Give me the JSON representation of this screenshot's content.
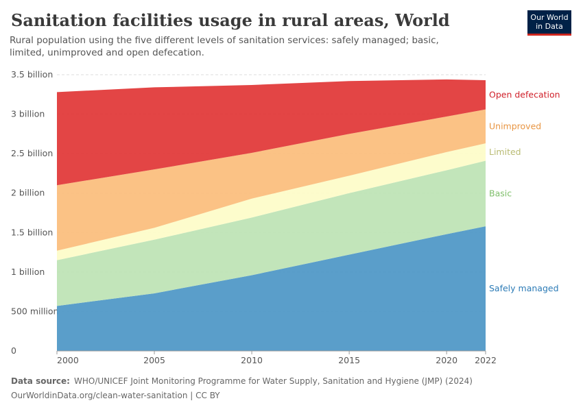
{
  "chart_data": {
    "type": "stacked_area",
    "title": "Sanitation facilities usage in rural areas, World",
    "subtitle": "Rural population using the five different levels of sanitation services: safely managed; basic, limited, unimproved and open defecation.",
    "logo": "Our World in Data",
    "source_label": "Data source:",
    "source": "WHO/UNICEF Joint Monitoring Programme for Water Supply, Sanitation and Hygiene (JMP) (2024)",
    "url": "OurWorldinData.org/clean-water-sanitation | CC BY",
    "x": [
      2000,
      2005,
      2010,
      2015,
      2020,
      2022
    ],
    "xlim": [
      2000,
      2022
    ],
    "xticks": [
      2000,
      2005,
      2010,
      2015,
      2020,
      2022
    ],
    "ylim": [
      0,
      3.5
    ],
    "yticks": [
      0,
      {
        "value": 0.5,
        "label": "500 million"
      },
      {
        "value": 1,
        "label": "1 billion"
      },
      {
        "value": 1.5,
        "label": "1.5 billion"
      },
      {
        "value": 2,
        "label": "2 billion"
      },
      {
        "value": 2.5,
        "label": "2.5 billion"
      },
      {
        "value": 3,
        "label": "3 billion"
      },
      {
        "value": 3.5,
        "label": "3.5 billion"
      }
    ],
    "grid": true,
    "series": [
      {
        "name": "Safely managed",
        "color": "#4c96c6",
        "values": [
          0.57,
          0.73,
          0.96,
          1.22,
          1.48,
          1.58
        ]
      },
      {
        "name": "Basic",
        "color": "#bde3b4",
        "values": [
          0.58,
          0.68,
          0.73,
          0.78,
          0.81,
          0.83
        ]
      },
      {
        "name": "Limited",
        "color": "#fdfcc8",
        "values": [
          0.12,
          0.15,
          0.24,
          0.22,
          0.23,
          0.22
        ]
      },
      {
        "name": "Unimproved",
        "color": "#fbbd7b",
        "values": [
          0.83,
          0.74,
          0.58,
          0.53,
          0.45,
          0.43
        ]
      },
      {
        "name": "Open defecation",
        "color": "#e13535",
        "values": [
          1.18,
          1.04,
          0.86,
          0.67,
          0.47,
          0.37
        ]
      }
    ],
    "label_colors": [
      "#2c7bb6",
      "#7fbf6b",
      "#b9bb73",
      "#e89542",
      "#d0202a"
    ]
  }
}
